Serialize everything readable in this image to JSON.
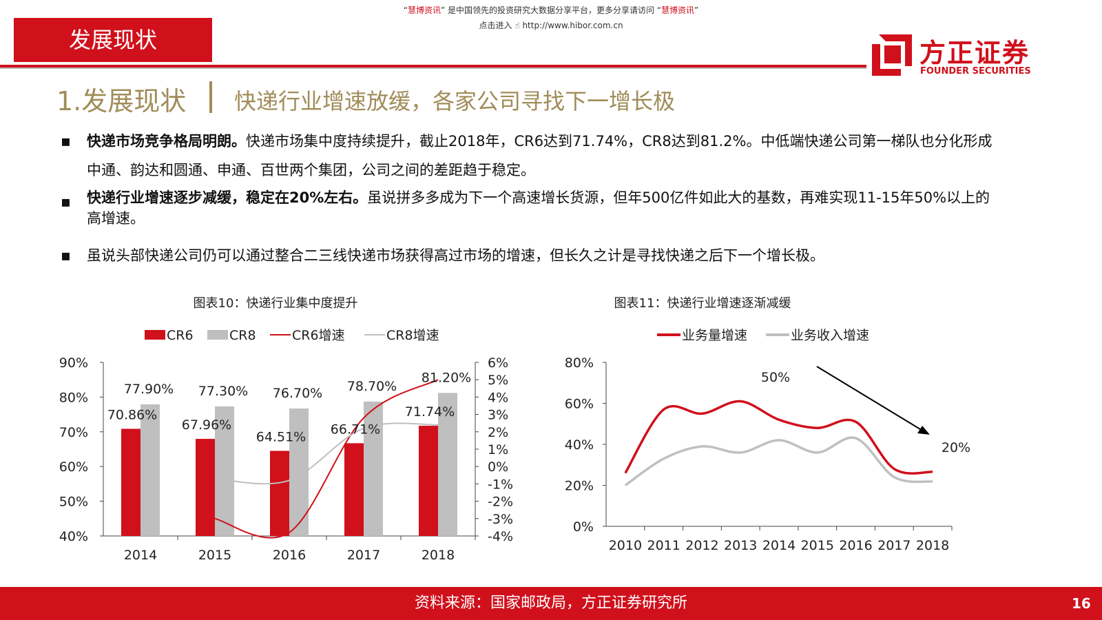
{
  "top_note": {
    "line1_quote_open": "“",
    "line1_brand": "慧博资讯",
    "line1_rest": "” 是中国领先的投资研究大数据分享平台，更多分享请访问 “",
    "line1_brand2": "慧博资讯",
    "line1_quote_close": "”",
    "line2_prefix": "点击进入",
    "line2_url": "http://www.hibor.com.cn"
  },
  "section_tab": "发展现状",
  "logo": {
    "cn": "方正证券",
    "en": "FOUNDER SECURITIES"
  },
  "title": {
    "num": "1.发展现状",
    "text": "快递行业增速放缓，各家公司寻找下一增长极"
  },
  "bullets": [
    {
      "bold": "快递市场竞争格局明朗。",
      "text": "快递市场集中度持续提升，截止2018年，CR6达到71.74%，CR8达到81.2%。中低端快递公司第一梯队也分化形成中通、韵达和圆通、申通、百世两个集团，公司之间的差距趋于稳定。"
    },
    {
      "bold": "快递行业增速逐步减缓，稳定在20%左右。",
      "text": "虽说拼多多成为下一个高速增长货源，但年500亿件如此大的基数，再难实现11-15年50%以上的高增速。"
    },
    {
      "bold": "",
      "text": "虽说头部快递公司仍可以通过整合二三线快递市场获得高过市场的增速，但长久之计是寻找快递之后下一个增长极。"
    }
  ],
  "bullet_marker": "▪",
  "footer": {
    "source": "资料来源：国家邮政局，方正证券研究所",
    "page": "16"
  },
  "colors": {
    "red": "#d0101b",
    "gray": "#bfbfbf",
    "gold": "#a08c58"
  },
  "chart_data": [
    {
      "type": "bar",
      "title": "图表10：快递行业集中度提升",
      "categories": [
        "2014",
        "2015",
        "2016",
        "2017",
        "2018"
      ],
      "series": [
        {
          "name": "CR6",
          "type": "bar",
          "axis": "left",
          "values": [
            70.86,
            67.96,
            64.51,
            66.71,
            71.74
          ],
          "labels": [
            "70.86%",
            "67.96%",
            "64.51%",
            "66.71%",
            "71.74%"
          ],
          "color": "#d0101b"
        },
        {
          "name": "CR8",
          "type": "bar",
          "axis": "left",
          "values": [
            77.9,
            77.3,
            76.7,
            78.7,
            81.2
          ],
          "labels": [
            "77.90%",
            "77.30%",
            "76.70%",
            "78.70%",
            "81.20%"
          ],
          "color": "#bfbfbf"
        },
        {
          "name": "CR6增速",
          "type": "line",
          "axis": "right",
          "values": [
            null,
            -3.0,
            -3.8,
            2.8,
            5.0
          ],
          "color": "#d0101b"
        },
        {
          "name": "CR8增速",
          "type": "line",
          "axis": "right",
          "values": [
            null,
            -0.7,
            -0.8,
            2.2,
            2.4
          ],
          "color": "#bfbfbf"
        }
      ],
      "y_left": {
        "range": [
          40,
          90
        ],
        "ticks": [
          "40%",
          "50%",
          "60%",
          "70%",
          "80%",
          "90%"
        ]
      },
      "y_right": {
        "range": [
          -4,
          6
        ],
        "ticks": [
          "-4%",
          "-3%",
          "-2%",
          "-1%",
          "0%",
          "1%",
          "2%",
          "3%",
          "4%",
          "5%",
          "6%"
        ]
      },
      "legend": "top"
    },
    {
      "type": "line",
      "title": "图表11：快递行业增速逐渐减缓",
      "x": [
        "2010",
        "2011",
        "2012",
        "2013",
        "2014",
        "2015",
        "2016",
        "2017",
        "2018"
      ],
      "series": [
        {
          "name": "业务量增速",
          "values": [
            26,
            57,
            55,
            61,
            52,
            48,
            51,
            28,
            26.6
          ],
          "color": "#d0101b"
        },
        {
          "name": "业务收入增速",
          "values": [
            20,
            33,
            39,
            36,
            42,
            36,
            43,
            24,
            21.8
          ],
          "color": "#bfbfbf"
        }
      ],
      "y": {
        "range": [
          0,
          80
        ],
        "ticks": [
          "0%",
          "20%",
          "40%",
          "60%",
          "80%"
        ]
      },
      "annotations": [
        "50%",
        "20%"
      ],
      "legend": "top"
    }
  ]
}
